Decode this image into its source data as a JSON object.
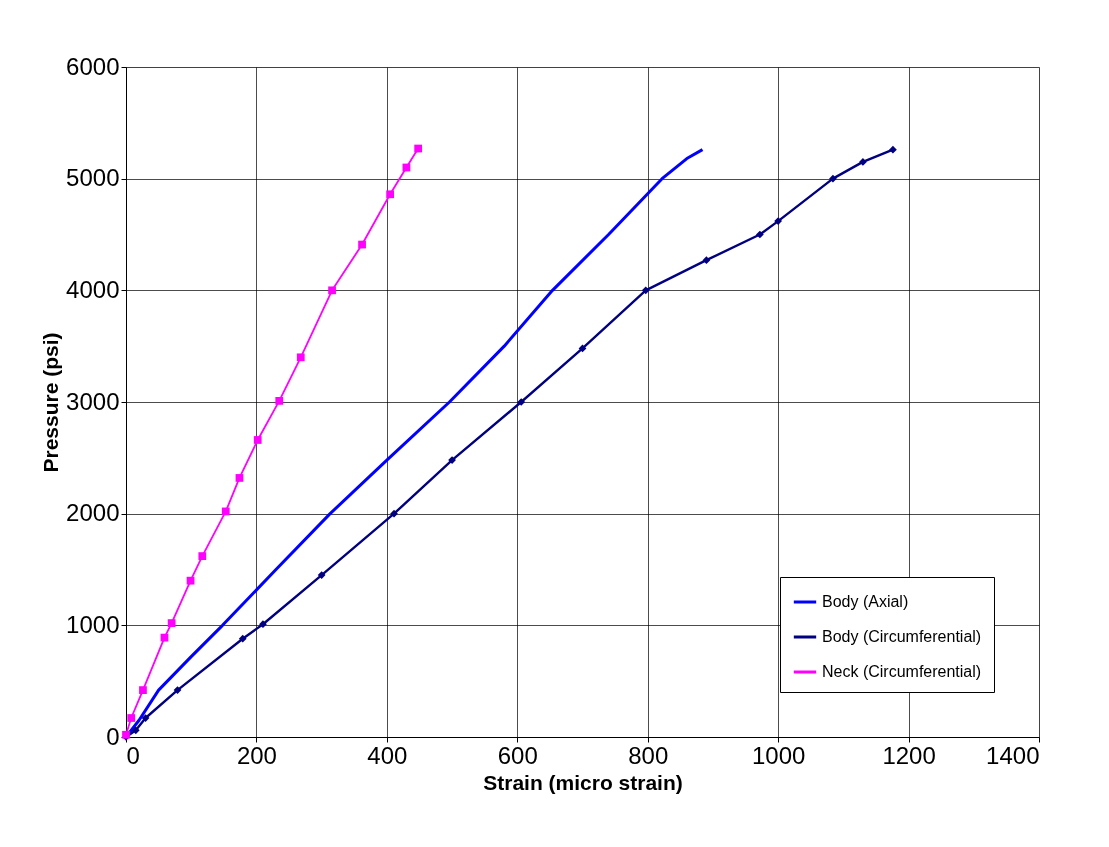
{
  "chart_data": {
    "type": "line",
    "xlabel": "Strain (micro strain)",
    "ylabel": "Pressure (psi)",
    "xlim": [
      0,
      1400
    ],
    "xticks": [
      0,
      200,
      400,
      600,
      800,
      1000,
      1200,
      1400
    ],
    "ylim": [
      0,
      6000
    ],
    "yticks": [
      0,
      1000,
      2000,
      3000,
      4000,
      5000,
      6000
    ],
    "grid": true,
    "legend": "bottom right",
    "series": [
      {
        "name": "Body (Axial)",
        "color": "#0000ff",
        "marker": "none",
        "x": [
          0,
          20,
          50,
          100,
          148,
          230,
          313,
          400,
          496,
          580,
          654,
          740,
          822,
          860,
          884
        ],
        "values": [
          0,
          150,
          420,
          720,
          1000,
          1500,
          2000,
          2480,
          3000,
          3500,
          4000,
          4500,
          5000,
          5180,
          5260
        ]
      },
      {
        "name": "Body (Circumferential)",
        "color": "#000080",
        "marker": "diamond",
        "x": [
          0,
          15,
          30,
          79,
          179,
          210,
          300,
          411,
          500,
          606,
          700,
          797,
          890,
          972,
          1000,
          1084,
          1130,
          1176
        ],
        "values": [
          0,
          60,
          170,
          420,
          880,
          1010,
          1450,
          2000,
          2480,
          3000,
          3480,
          4000,
          4270,
          4500,
          4620,
          5000,
          5150,
          5260
        ]
      },
      {
        "name": "Neck (Circumferential)",
        "color": "#ff00ff",
        "marker": "square",
        "x": [
          0,
          8,
          26,
          59,
          70,
          99,
          117,
          153,
          174,
          202,
          235,
          268,
          316,
          362,
          405,
          430,
          448
        ],
        "values": [
          20,
          170,
          420,
          890,
          1020,
          1400,
          1620,
          2020,
          2320,
          2660,
          3010,
          3400,
          4000,
          4410,
          4860,
          5100,
          5270
        ]
      }
    ]
  }
}
